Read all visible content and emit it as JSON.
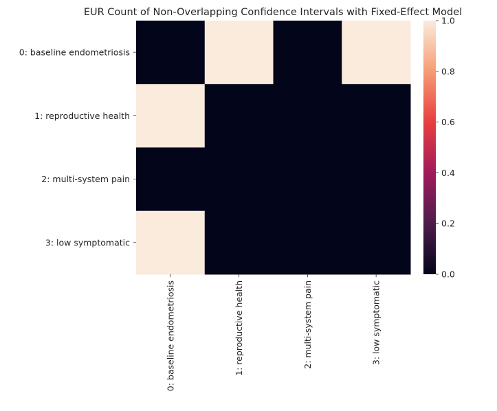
{
  "chart_data": {
    "type": "heatmap",
    "title": "EUR Count of Non-Overlapping Confidence Intervals with Fixed-Effect Model",
    "xlabel": "",
    "ylabel": "",
    "rows": [
      "0: baseline endometriosis",
      "1: reproductive health",
      "2: multi-system pain",
      "3: low symptomatic"
    ],
    "columns": [
      "0: baseline endometriosis",
      "1: reproductive health",
      "2: multi-system pain",
      "3: low symptomatic"
    ],
    "values": [
      [
        0,
        1,
        0,
        1
      ],
      [
        1,
        0,
        0,
        0
      ],
      [
        0,
        0,
        0,
        0
      ],
      [
        1,
        0,
        0,
        0
      ]
    ],
    "colorbar": {
      "min": 0.0,
      "max": 1.0,
      "ticks": [
        "0.0",
        "0.2",
        "0.4",
        "0.6",
        "0.8",
        "1.0"
      ],
      "colormap": "rocket",
      "colors": [
        "#03051a",
        "#4c1d4b",
        "#a11a5b",
        "#e83f3f",
        "#f69c73",
        "#faebdd"
      ]
    },
    "grid": false
  }
}
